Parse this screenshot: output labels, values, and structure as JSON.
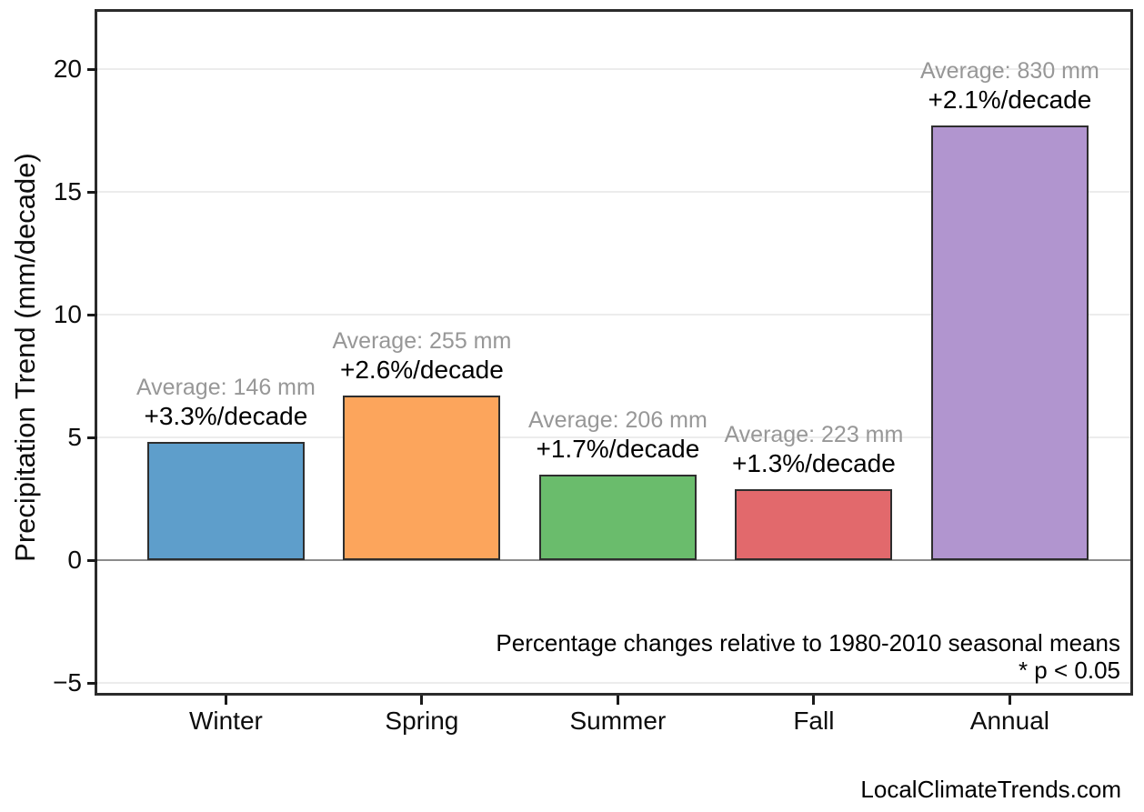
{
  "watermark": "LocalClimateTrends.com",
  "colors": {
    "background": "#ffffff",
    "spine": "#2b2b2b",
    "gridline": "#ececec",
    "zero_line": "#8c8c8c",
    "bar_edge": "#2e2e2e",
    "average_text": "#979797",
    "trend_text": "#000000"
  },
  "chart_data": {
    "type": "bar",
    "title": "",
    "xlabel": "",
    "ylabel": "Precipitation Trend (mm/decade)",
    "categories": [
      "Winter",
      "Spring",
      "Summer",
      "Fall",
      "Annual"
    ],
    "values": [
      4.8,
      6.7,
      3.5,
      2.9,
      17.7
    ],
    "bar_colors": [
      "#5E9ECB",
      "#FCA55C",
      "#6ABC6C",
      "#E2696C",
      "#B195CF"
    ],
    "averages_mm": [
      146,
      255,
      206,
      223,
      830
    ],
    "percent_per_decade": [
      3.3,
      2.6,
      1.7,
      1.3,
      2.1
    ],
    "annotations": [
      {
        "category": "Winter",
        "average_label": "Average: 146 mm",
        "trend_label": "+3.3%/decade"
      },
      {
        "category": "Spring",
        "average_label": "Average: 255 mm",
        "trend_label": "+2.6%/decade"
      },
      {
        "category": "Summer",
        "average_label": "Average: 206 mm",
        "trend_label": "+1.7%/decade"
      },
      {
        "category": "Fall",
        "average_label": "Average: 223 mm",
        "trend_label": "+1.3%/decade"
      },
      {
        "category": "Annual",
        "average_label": "Average: 830 mm",
        "trend_label": "+2.1%/decade"
      }
    ],
    "yticks": [
      20,
      15,
      10,
      5,
      0,
      -5
    ],
    "ytick_labels": [
      "20",
      "15",
      "10",
      "5",
      "0",
      "−5"
    ],
    "ylim": [
      -5.4,
      22.4
    ],
    "grid": true,
    "legend": "none",
    "footnotes": {
      "line1": "Percentage changes relative to 1980-2010 seasonal means",
      "line2": "* p < 0.05"
    }
  }
}
